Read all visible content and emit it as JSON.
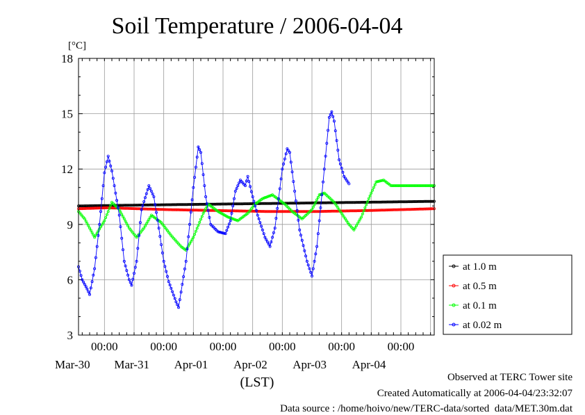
{
  "chart_data": {
    "type": "line",
    "title": "Soil Temperature / 2006-04-04",
    "ylabel": "[°C]",
    "xlabel": "(LST)",
    "ylim": [
      3,
      18
    ],
    "yticks": [
      3,
      6,
      9,
      12,
      15,
      18
    ],
    "x_unit": "hours since Mar-29 00:00 LST",
    "xlim": [
      13.5,
      157.5
    ],
    "x_ticks": [
      {
        "x": 24,
        "time": "00:00",
        "date": "Mar-30"
      },
      {
        "x": 48,
        "time": "00:00",
        "date": "Mar-31"
      },
      {
        "x": 72,
        "time": "00:00",
        "date": "Apr-01"
      },
      {
        "x": 96,
        "time": "00:00",
        "date": "Apr-02"
      },
      {
        "x": 120,
        "time": "00:00",
        "date": "Apr-03"
      },
      {
        "x": 144,
        "time": "00:00",
        "date": "Apr-04"
      }
    ],
    "grid": true,
    "legend_position": "right",
    "series": [
      {
        "name": "at 1.0 m",
        "color": "#000000",
        "points": [
          [
            13.5,
            10.0
          ],
          [
            40,
            10.05
          ],
          [
            70,
            10.1
          ],
          [
            100,
            10.15
          ],
          [
            130,
            10.2
          ],
          [
            157.5,
            10.25
          ]
        ]
      },
      {
        "name": "at 0.5 m",
        "color": "#ff0000",
        "points": [
          [
            13.5,
            9.85
          ],
          [
            25,
            9.9
          ],
          [
            50,
            9.8
          ],
          [
            70,
            9.75
          ],
          [
            90,
            9.7
          ],
          [
            110,
            9.7
          ],
          [
            130,
            9.75
          ],
          [
            157.5,
            9.85
          ]
        ]
      },
      {
        "name": "at 0.1 m",
        "color": "#00ff00",
        "points": [
          [
            13.5,
            9.7
          ],
          [
            16,
            9.3
          ],
          [
            20,
            8.3
          ],
          [
            24,
            9.2
          ],
          [
            27,
            10.2
          ],
          [
            30,
            9.8
          ],
          [
            34,
            8.8
          ],
          [
            37,
            8.3
          ],
          [
            40,
            8.8
          ],
          [
            43,
            9.5
          ],
          [
            47,
            9.1
          ],
          [
            51,
            8.4
          ],
          [
            55,
            7.8
          ],
          [
            57,
            7.6
          ],
          [
            60,
            8.3
          ],
          [
            64,
            9.6
          ],
          [
            66,
            10.1
          ],
          [
            70,
            9.7
          ],
          [
            74,
            9.4
          ],
          [
            78,
            9.2
          ],
          [
            82,
            9.6
          ],
          [
            85,
            10.1
          ],
          [
            88,
            10.4
          ],
          [
            92,
            10.6
          ],
          [
            94,
            10.4
          ],
          [
            97,
            10.1
          ],
          [
            100,
            9.7
          ],
          [
            104,
            9.3
          ],
          [
            108,
            9.8
          ],
          [
            111,
            10.6
          ],
          [
            113,
            10.7
          ],
          [
            117,
            10.2
          ],
          [
            120,
            9.6
          ],
          [
            123,
            9.0
          ],
          [
            125,
            8.7
          ],
          [
            128,
            9.4
          ],
          [
            131,
            10.4
          ],
          [
            134,
            11.3
          ],
          [
            137,
            11.4
          ],
          [
            140,
            11.1
          ],
          [
            157.5,
            11.1
          ]
        ]
      },
      {
        "name": "at 0.02 m",
        "color": "#0000ff",
        "points": [
          [
            13.5,
            6.7
          ],
          [
            15,
            6.0
          ],
          [
            17,
            5.5
          ],
          [
            18,
            5.2
          ],
          [
            20,
            6.6
          ],
          [
            22,
            9.0
          ],
          [
            24,
            11.8
          ],
          [
            25.5,
            12.7
          ],
          [
            27,
            11.9
          ],
          [
            30,
            9.5
          ],
          [
            32,
            7.0
          ],
          [
            34,
            6.0
          ],
          [
            35,
            5.7
          ],
          [
            37,
            7.0
          ],
          [
            39,
            9.8
          ],
          [
            42,
            11.1
          ],
          [
            44,
            10.5
          ],
          [
            46,
            8.8
          ],
          [
            48,
            7.0
          ],
          [
            50,
            5.9
          ],
          [
            53,
            4.8
          ],
          [
            54,
            4.5
          ],
          [
            57,
            7.0
          ],
          [
            60,
            11.0
          ],
          [
            62,
            13.2
          ],
          [
            63,
            12.9
          ],
          [
            65,
            10.5
          ],
          [
            67,
            9.0
          ],
          [
            70,
            8.6
          ],
          [
            73,
            8.5
          ],
          [
            75,
            9.2
          ],
          [
            77,
            10.8
          ],
          [
            79,
            11.4
          ],
          [
            81,
            11.1
          ],
          [
            82,
            11.6
          ],
          [
            84,
            10.5
          ],
          [
            86,
            9.5
          ],
          [
            89,
            8.3
          ],
          [
            91,
            7.8
          ],
          [
            93,
            8.8
          ],
          [
            96,
            12.0
          ],
          [
            98,
            13.1
          ],
          [
            99,
            12.9
          ],
          [
            101,
            10.8
          ],
          [
            103,
            8.7
          ],
          [
            106,
            7.0
          ],
          [
            108,
            6.2
          ],
          [
            110,
            7.8
          ],
          [
            113,
            12.0
          ],
          [
            115,
            14.8
          ],
          [
            116,
            15.1
          ],
          [
            117,
            14.6
          ],
          [
            119,
            12.5
          ],
          [
            121,
            11.6
          ],
          [
            123,
            11.2
          ]
        ]
      }
    ]
  },
  "footer": {
    "line1": "Observed at TERC Tower site",
    "line2": "Created Automatically at 2006-04-04/23:32:07",
    "line3": "Data source : /home/hoivo/new/TERC-data/sorted  data/MET.30m.dat"
  }
}
